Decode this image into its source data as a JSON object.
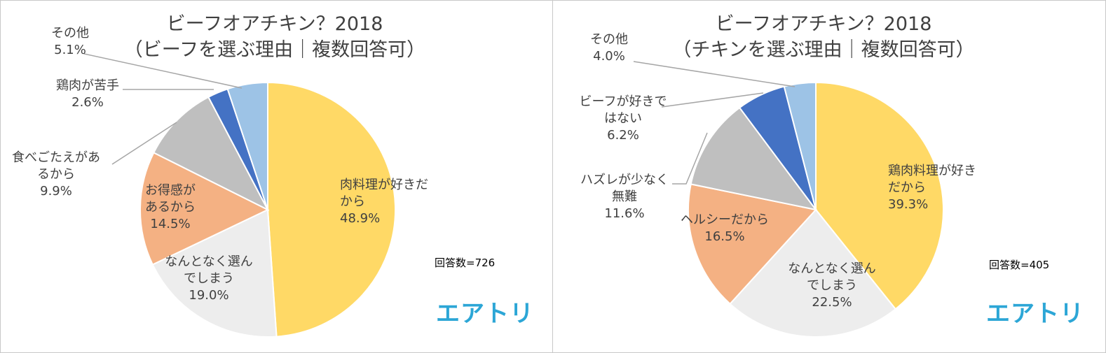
{
  "chart_data": [
    {
      "type": "pie",
      "title": "ビーフオアチキン？2018",
      "subtitle": "（ビーフを選ぶ理由｜複数回答可）",
      "respondents": "回答数=726",
      "brand": "エアトリ",
      "slices": [
        {
          "label": [
            "肉料理が好きだ",
            "から"
          ],
          "value": 48.9,
          "display": "48.9%",
          "color": "#FFD966"
        },
        {
          "label": [
            "なんとなく選ん",
            "でしまう"
          ],
          "value": 19.0,
          "display": "19.0%",
          "color": "#EDEDED"
        },
        {
          "label": [
            "お得感が",
            "あるから"
          ],
          "value": 14.5,
          "display": "14.5%",
          "color": "#F4B183"
        },
        {
          "label": [
            "食べごたえがあ",
            "るから"
          ],
          "value": 9.9,
          "display": "9.9%",
          "color": "#BFBFBF"
        },
        {
          "label": [
            "鶏肉が苦手"
          ],
          "value": 2.6,
          "display": "2.6%",
          "color": "#4472C4"
        },
        {
          "label": [
            "その他"
          ],
          "value": 5.1,
          "display": "5.1%",
          "color": "#9DC3E6"
        }
      ]
    },
    {
      "type": "pie",
      "title": "ビーフオアチキン？2018",
      "subtitle": "（チキンを選ぶ理由｜複数回答可）",
      "respondents": "回答数=405",
      "brand": "エアトリ",
      "slices": [
        {
          "label": [
            "鶏肉料理が好き",
            "だから"
          ],
          "value": 39.3,
          "display": "39.3%",
          "color": "#FFD966"
        },
        {
          "label": [
            "なんとなく選ん",
            "でしまう"
          ],
          "value": 22.5,
          "display": "22.5%",
          "color": "#EDEDED"
        },
        {
          "label": [
            "ヘルシーだから"
          ],
          "value": 16.5,
          "display": "16.5%",
          "color": "#F4B183"
        },
        {
          "label": [
            "ハズレが少なく",
            "無難"
          ],
          "value": 11.6,
          "display": "11.6%",
          "color": "#BFBFBF"
        },
        {
          "label": [
            "ビーフが好きで",
            "はない"
          ],
          "value": 6.2,
          "display": "6.2%",
          "color": "#4472C4"
        },
        {
          "label": [
            "その他"
          ],
          "value": 4.0,
          "display": "4.0%",
          "color": "#9DC3E6"
        }
      ]
    }
  ]
}
